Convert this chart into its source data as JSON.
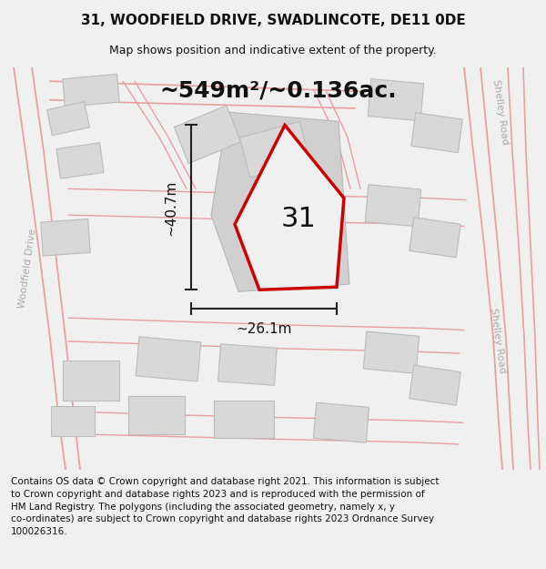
{
  "title": "31, WOODFIELD DRIVE, SWADLINCOTE, DE11 0DE",
  "subtitle": "Map shows position and indicative extent of the property.",
  "area_label": "~549m²/~0.136ac.",
  "plot_number": "31",
  "dim_width": "~26.1m",
  "dim_height": "~40.7m",
  "footer": "Contains OS data © Crown copyright and database right 2021. This information is subject\nto Crown copyright and database rights 2023 and is reproduced with the permission of\nHM Land Registry. The polygons (including the associated geometry, namely x, y\nco-ordinates) are subject to Crown copyright and database rights 2023 Ordnance Survey\n100026316.",
  "bg_color": "#f0f0f0",
  "map_bg": "#ffffff",
  "building_fill": "#d8d8d8",
  "building_edge": "#bbbbbb",
  "road_pink": "#e8a0a0",
  "highlight_color": "#cc0000",
  "text_color": "#111111",
  "road_label_color": "#aaaaaa",
  "dim_line_color": "#222222",
  "title_fontsize": 11,
  "subtitle_fontsize": 9,
  "area_fontsize": 18,
  "plot_num_fontsize": 22,
  "dim_fontsize": 11,
  "footer_fontsize": 7.5
}
